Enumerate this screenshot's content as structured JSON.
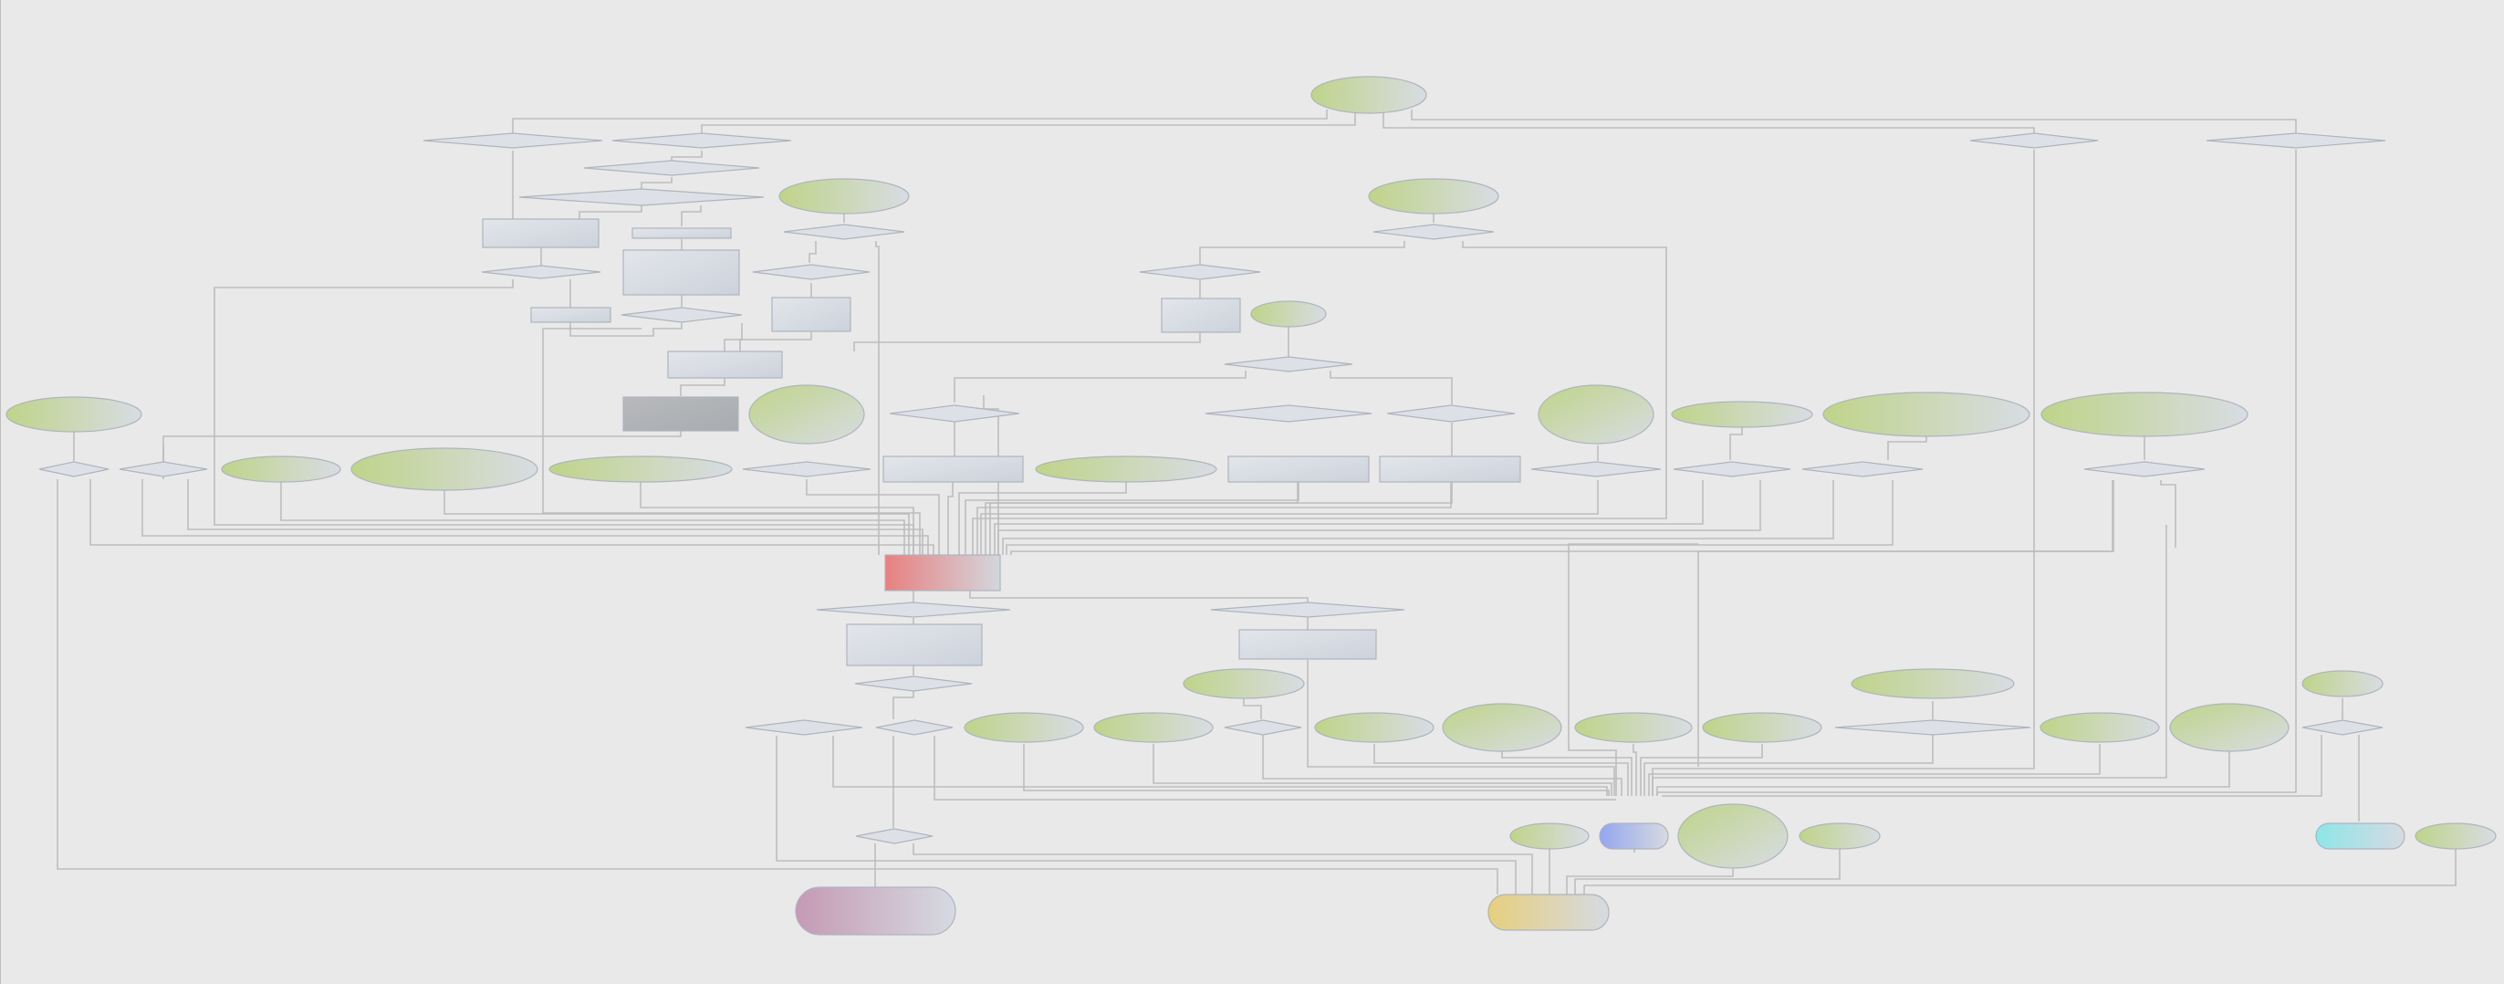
{
  "colors": {
    "background": "#e9e9e9",
    "edge": "#bdbdbd",
    "ellipse_start": "#bfd48a",
    "ellipse_end": "#d8dce3",
    "rect_start": "#e3e6ea",
    "rect_end": "#ccd2dc",
    "diamond": "#dde1e7",
    "red_start": "#e88080",
    "red_end": "#d3d7dd",
    "gray_start": "#b7b9bc",
    "gray_end": "#a9acb0",
    "blue_start": "#94a6ee",
    "blue_end": "#d6dae2",
    "cyan_start": "#8ee6e8",
    "cyan_end": "#d6dae2",
    "mauve_start": "#c59ab4",
    "mauve_end": "#d6dae2",
    "gold_start": "#e6cf7e",
    "gold_end": "#d6dae2"
  },
  "diagram": {
    "type": "flowchart",
    "labels_visible": false,
    "node_shapes": [
      "ellipse",
      "diamond",
      "rect",
      "terminal"
    ],
    "hub_node": "central-red-process",
    "terminal_nodes": [
      "blue-terminal",
      "gold-terminal",
      "mauve-terminal",
      "cyan-terminal"
    ]
  }
}
